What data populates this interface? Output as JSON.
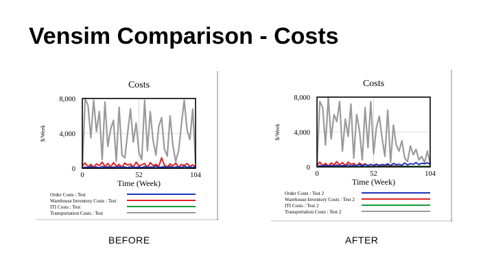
{
  "slide": {
    "title": "Vensim Comparison - Costs"
  },
  "captions": {
    "before": "BEFORE",
    "after": "AFTER"
  },
  "colors": {
    "order": "#2233bb",
    "warehouse": "#e02020",
    "iti": "#139a3a",
    "transport": "#9a9a9a"
  },
  "chart_data": [
    {
      "type": "line",
      "title": "Costs",
      "xlabel": "Time (Week)",
      "ylabel": "$/Week",
      "xlim": [
        0,
        104
      ],
      "ylim": [
        0,
        8000
      ],
      "xticks": [
        "0",
        "52",
        "104"
      ],
      "yticks": [
        "0",
        "4,000",
        "8,000"
      ],
      "grid": true,
      "legend_placement": "bottom",
      "series": [
        {
          "name": "Order Costs : Test",
          "color": "#2233bb",
          "values": [
            0,
            120,
            60,
            200,
            80,
            150,
            40,
            220,
            90,
            180,
            60,
            140,
            110,
            200,
            70,
            160,
            50,
            230,
            120,
            90,
            170,
            60,
            210,
            80,
            150,
            100,
            260,
            70,
            140,
            180,
            90,
            220,
            60,
            130,
            190,
            80,
            250,
            110,
            160,
            70,
            200
          ]
        },
        {
          "name": "Warehouse Inventory Costs : Test",
          "color": "#e02020",
          "values": [
            250,
            600,
            150,
            450,
            100,
            500,
            300,
            700,
            200,
            550,
            150,
            650,
            250,
            450,
            100,
            600,
            350,
            500,
            150,
            700,
            250,
            400,
            550,
            100,
            650,
            300,
            450,
            200,
            1200,
            350,
            150,
            500,
            250,
            600,
            100,
            450,
            300,
            550,
            200,
            400,
            150
          ]
        },
        {
          "name": "ITI Costs : Test",
          "color": "#139a3a",
          "values": [
            0,
            30,
            10,
            40,
            20,
            15,
            35,
            10,
            45,
            20,
            30,
            10,
            25,
            40,
            15,
            35,
            20,
            10,
            45,
            25,
            30,
            15,
            40,
            20,
            10,
            35,
            25,
            45,
            15,
            30,
            20,
            40,
            10,
            35,
            25,
            15,
            45,
            20,
            30,
            10,
            25
          ]
        },
        {
          "name": "Transportation Costs : Test",
          "color": "#9a9a9a",
          "values": [
            0,
            8000,
            7200,
            3500,
            7800,
            4200,
            6500,
            1000,
            7600,
            2500,
            4500,
            5500,
            800,
            7000,
            1500,
            1200,
            4000,
            6800,
            3000,
            5200,
            1800,
            1000,
            7800,
            2000,
            6500,
            3200,
            1500,
            4800,
            5800,
            2200,
            1400,
            6000,
            2600,
            800,
            2000,
            5000,
            7800,
            4400,
            3300,
            6800,
            600
          ]
        }
      ]
    },
    {
      "type": "line",
      "title": "Costs",
      "xlabel": "Time (Week)",
      "ylabel": "$/Week",
      "xlim": [
        0,
        104
      ],
      "ylim": [
        0,
        8000
      ],
      "xticks": [
        "0",
        "52",
        "104"
      ],
      "yticks": [
        "0",
        "4,000",
        "8,000"
      ],
      "grid": true,
      "legend_placement": "bottom",
      "series": [
        {
          "name": "Order Costs : Test 2",
          "color": "#2233bb",
          "values": [
            0,
            150,
            80,
            200,
            60,
            180,
            100,
            220,
            70,
            160,
            120,
            240,
            90,
            200,
            150,
            260,
            80,
            300,
            120,
            250,
            180,
            320,
            100,
            280,
            200,
            350,
            150,
            400,
            250,
            300,
            180,
            450,
            220,
            380,
            300,
            500,
            260,
            420,
            350,
            480,
            300
          ]
        },
        {
          "name": "Warehouse Inventory Costs : Test 2",
          "color": "#e02020",
          "values": [
            200,
            550,
            150,
            400,
            100,
            450,
            250,
            600,
            200,
            500,
            150,
            550,
            300,
            400,
            100,
            450,
            200,
            350,
            150,
            300,
            100,
            250,
            200,
            150,
            100,
            200,
            150,
            100,
            120,
            80,
            100,
            60,
            80,
            50,
            70,
            40,
            60,
            30,
            50,
            20,
            30
          ]
        },
        {
          "name": "ITI Costs : Test 2",
          "color": "#139a3a",
          "values": [
            0,
            20,
            10,
            30,
            15,
            25,
            10,
            35,
            20,
            15,
            30,
            10,
            25,
            20,
            35,
            15,
            30,
            40,
            20,
            35,
            25,
            45,
            30,
            40,
            50,
            35,
            45,
            30,
            55,
            40,
            50,
            60,
            45,
            55,
            40,
            60,
            50,
            65,
            45,
            55,
            60
          ]
        },
        {
          "name": "Transportation Costs : Test 2",
          "color": "#9a9a9a",
          "values": [
            0,
            7500,
            6800,
            2500,
            8000,
            3200,
            6000,
            5200,
            7500,
            1800,
            5500,
            3500,
            7200,
            1000,
            6000,
            4200,
            800,
            6800,
            2200,
            7500,
            1500,
            4500,
            5800,
            3300,
            1200,
            6500,
            500,
            4800,
            2500,
            1800,
            3000,
            1000,
            600,
            2400,
            1400,
            2000,
            800,
            1200,
            500,
            1800,
            400
          ]
        }
      ]
    }
  ]
}
